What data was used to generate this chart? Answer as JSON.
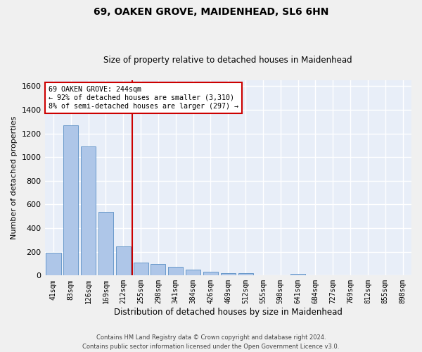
{
  "title": "69, OAKEN GROVE, MAIDENHEAD, SL6 6HN",
  "subtitle": "Size of property relative to detached houses in Maidenhead",
  "xlabel": "Distribution of detached houses by size in Maidenhead",
  "ylabel": "Number of detached properties",
  "footer_line1": "Contains HM Land Registry data © Crown copyright and database right 2024.",
  "footer_line2": "Contains public sector information licensed under the Open Government Licence v3.0.",
  "categories": [
    "41sqm",
    "83sqm",
    "126sqm",
    "169sqm",
    "212sqm",
    "255sqm",
    "298sqm",
    "341sqm",
    "384sqm",
    "426sqm",
    "469sqm",
    "512sqm",
    "555sqm",
    "598sqm",
    "641sqm",
    "684sqm",
    "727sqm",
    "769sqm",
    "812sqm",
    "855sqm",
    "898sqm"
  ],
  "values": [
    193,
    1270,
    1090,
    540,
    248,
    110,
    100,
    75,
    50,
    30,
    20,
    20,
    0,
    0,
    15,
    0,
    0,
    0,
    0,
    0,
    0
  ],
  "bar_color": "#aec6e8",
  "bar_edge_color": "#5a8fc4",
  "background_color": "#e8eef8",
  "grid_color": "#ffffff",
  "annotation_box_color": "#ffffff",
  "annotation_border_color": "#cc0000",
  "vline_color": "#cc0000",
  "annotation_text_line1": "69 OAKEN GROVE: 244sqm",
  "annotation_text_line2": "← 92% of detached houses are smaller (3,310)",
  "annotation_text_line3": "8% of semi-detached houses are larger (297) →",
  "ylim": [
    0,
    1650
  ],
  "yticks": [
    0,
    200,
    400,
    600,
    800,
    1000,
    1200,
    1400,
    1600
  ],
  "fig_bg_color": "#f0f0f0",
  "title_fontsize": 10,
  "subtitle_fontsize": 8.5,
  "ylabel_fontsize": 8,
  "xlabel_fontsize": 8.5
}
